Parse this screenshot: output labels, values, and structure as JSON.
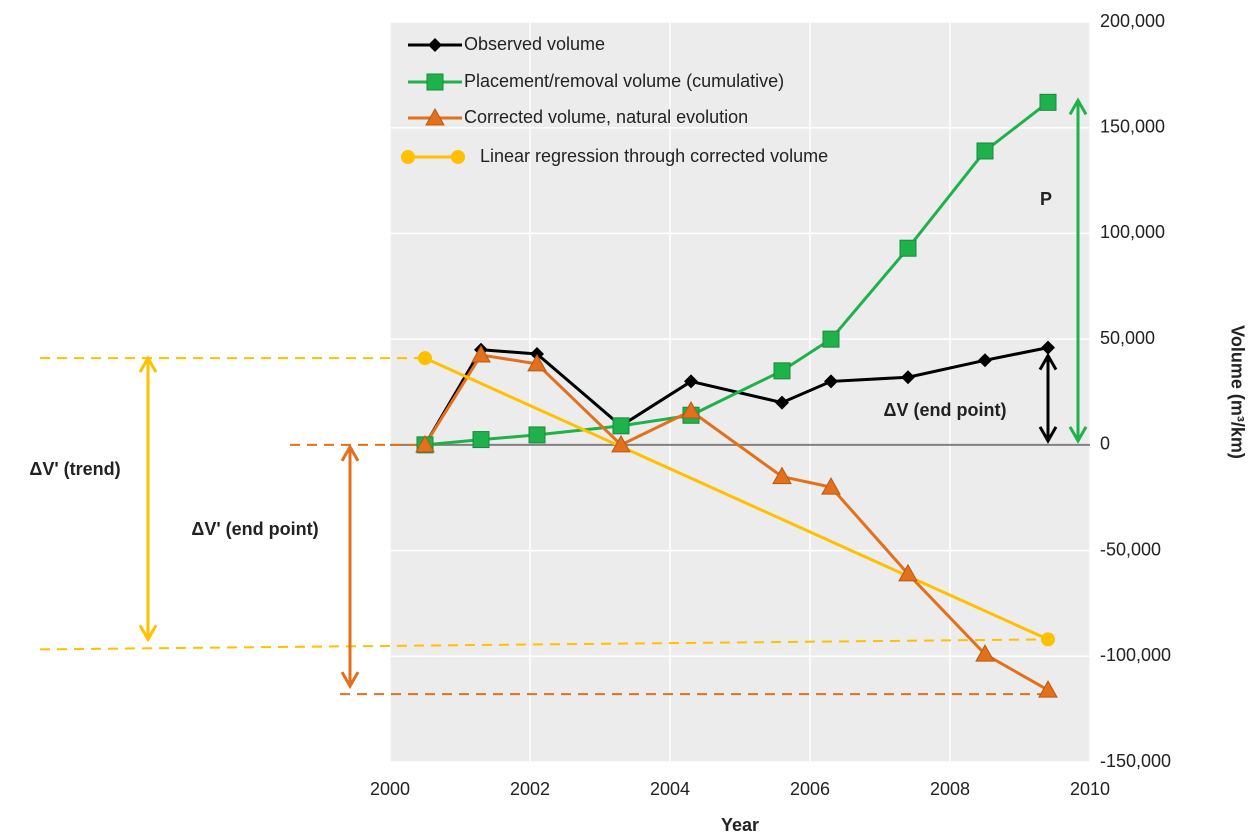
{
  "chart_data": {
    "type": "line",
    "xlabel": "Year",
    "ylabel": "Volume (m³/km)",
    "xlim": [
      2000,
      2010
    ],
    "xticks": [
      2000,
      2002,
      2004,
      2006,
      2008,
      2010
    ],
    "ylim": [
      -150000,
      200000
    ],
    "yticks": [
      {
        "value": -150000,
        "label": "-150,000"
      },
      {
        "value": -100000,
        "label": "-100,000"
      },
      {
        "value": -50000,
        "label": "-50,000"
      },
      0,
      {
        "value": 50000,
        "label": "50,000"
      },
      {
        "value": 100000,
        "label": "100,000"
      },
      {
        "value": 150000,
        "label": "150,000"
      },
      {
        "value": 200000,
        "label": "200,000"
      }
    ],
    "grid": true,
    "y_axis_side": "right",
    "legend": "upper left",
    "series": [
      {
        "name": "Observed volume",
        "color": "#000000",
        "marker": "diamond",
        "x": [
          2000.5,
          2001.3,
          2002.1,
          2003.3,
          2004.3,
          2005.6,
          2006.3,
          2007.4,
          2008.5,
          2009.4
        ],
        "values": [
          0,
          45000,
          43000,
          9000,
          30000,
          20000,
          30000,
          32000,
          40000,
          46000
        ]
      },
      {
        "name": "Placement/removal volume (cumulative)",
        "color": "#1fb14b",
        "marker": "square",
        "x": [
          2000.5,
          2001.3,
          2002.1,
          2003.3,
          2004.3,
          2005.6,
          2006.3,
          2007.4,
          2008.5,
          2009.4
        ],
        "values": [
          0,
          2500,
          4700,
          9000,
          14000,
          35000,
          50000,
          93000,
          139000,
          162000
        ]
      },
      {
        "name": "Corrected volume, natural evolution",
        "color": "#e2701c",
        "marker": "triangle",
        "x": [
          2000.5,
          2001.3,
          2002.1,
          2003.3,
          2004.3,
          2005.6,
          2006.3,
          2007.4,
          2008.5,
          2009.4
        ],
        "values": [
          0,
          42500,
          38300,
          0,
          16000,
          -15000,
          -20000,
          -61000,
          -99000,
          -116000
        ]
      },
      {
        "name": "Linear regression through corrected volume",
        "color": "#ffc000",
        "marker": "circle",
        "x": [
          2000.5,
          2009.4
        ],
        "values": [
          41000,
          -92000
        ]
      }
    ],
    "annotations": [
      {
        "text": "P",
        "color": "#1fb14b"
      },
      {
        "text": "ΔV (end point)",
        "color": "#000000"
      },
      {
        "text": "ΔV' (trend)",
        "color": "#ffc000"
      },
      {
        "text": "ΔV' (end point)",
        "color": "#e2701c"
      }
    ]
  }
}
